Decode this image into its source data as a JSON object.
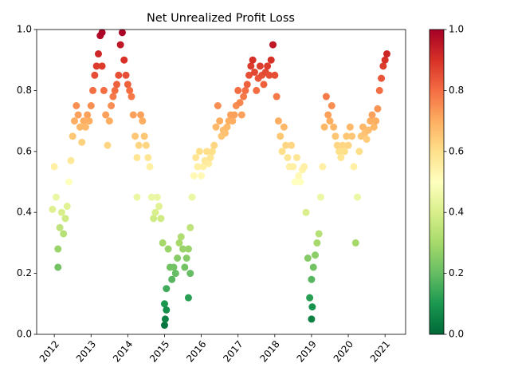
{
  "chart_data": {
    "type": "scatter",
    "title": "Net Unrealized Profit Loss",
    "colormap": "RdYlGn",
    "x": [
      2011.95,
      2012.0,
      2012.05,
      2012.1,
      2012.15,
      2012.2,
      2012.25,
      2012.3,
      2012.35,
      2012.4,
      2012.45,
      2012.5,
      2012.55,
      2012.6,
      2012.65,
      2012.7,
      2012.75,
      2012.8,
      2012.85,
      2012.9,
      2012.95,
      2013.0,
      2013.05,
      2013.1,
      2013.15,
      2013.2,
      2013.25,
      2013.3,
      2013.35,
      2013.4,
      2013.45,
      2013.5,
      2013.55,
      2013.6,
      2013.65,
      2013.7,
      2013.75,
      2013.8,
      2013.85,
      2013.9,
      2013.95,
      2014.0,
      2014.05,
      2014.1,
      2014.15,
      2014.2,
      2014.25,
      2014.3,
      2014.35,
      2014.4,
      2014.45,
      2014.5,
      2014.55,
      2014.6,
      2014.65,
      2014.7,
      2014.75,
      2014.8,
      2014.85,
      2014.9,
      2014.95,
      2015.0,
      2015.05,
      2015.1,
      2015.15,
      2015.2,
      2015.25,
      2015.3,
      2015.35,
      2015.4,
      2015.45,
      2015.5,
      2015.55,
      2015.6,
      2015.65,
      2015.7,
      2015.75,
      2015.8,
      2015.85,
      2015.9,
      2015.95,
      2016.0,
      2016.05,
      2016.1,
      2016.15,
      2016.2,
      2016.25,
      2016.3,
      2016.35,
      2016.4,
      2016.45,
      2016.5,
      2016.55,
      2016.6,
      2016.65,
      2016.7,
      2016.75,
      2016.8,
      2016.85,
      2016.9,
      2016.95,
      2017.0,
      2017.05,
      2017.1,
      2017.15,
      2017.2,
      2017.25,
      2017.3,
      2017.35,
      2017.4,
      2017.45,
      2017.5,
      2017.55,
      2017.6,
      2017.65,
      2017.7,
      2017.75,
      2017.8,
      2017.85,
      2017.9,
      2017.95,
      2018.0,
      2018.05,
      2018.1,
      2018.15,
      2018.2,
      2018.25,
      2018.3,
      2018.35,
      2018.4,
      2018.45,
      2018.5,
      2018.55,
      2018.6,
      2018.65,
      2018.7,
      2018.75,
      2018.8,
      2018.85,
      2018.9,
      2018.95,
      2019.0,
      2019.05,
      2019.1,
      2019.15,
      2019.2,
      2019.25,
      2019.3,
      2019.35,
      2019.4,
      2019.45,
      2019.5,
      2019.55,
      2019.6,
      2019.65,
      2019.7,
      2019.75,
      2019.8,
      2019.85,
      2019.9,
      2019.95,
      2020.0,
      2020.05,
      2020.1,
      2020.15,
      2020.2,
      2020.25,
      2020.3,
      2020.35,
      2020.4,
      2020.45,
      2020.5,
      2020.55,
      2020.6,
      2020.65,
      2020.7,
      2020.75,
      2020.8,
      2020.85,
      2020.9,
      2020.95,
      2021.0,
      2021.05,
      2015.0,
      2015.02,
      2015.05,
      2019.0,
      2019.02,
      2013.3,
      2015.65,
      2012.1,
      2014.25,
      2015.7
    ],
    "values": [
      0.41,
      0.55,
      0.45,
      0.28,
      0.35,
      0.4,
      0.33,
      0.38,
      0.42,
      0.5,
      0.57,
      0.65,
      0.7,
      0.75,
      0.72,
      0.68,
      0.63,
      0.7,
      0.68,
      0.72,
      0.7,
      0.75,
      0.8,
      0.85,
      0.88,
      0.92,
      0.98,
      0.88,
      0.8,
      0.72,
      0.62,
      0.7,
      0.75,
      0.78,
      0.8,
      0.82,
      0.85,
      0.95,
      0.99,
      0.9,
      0.85,
      0.82,
      0.8,
      0.78,
      0.72,
      0.65,
      0.58,
      0.62,
      0.72,
      0.7,
      0.65,
      0.62,
      0.58,
      0.55,
      0.45,
      0.38,
      0.4,
      0.45,
      0.42,
      0.38,
      0.3,
      0.1,
      0.15,
      0.28,
      0.22,
      0.18,
      0.22,
      0.2,
      0.25,
      0.3,
      0.32,
      0.28,
      0.22,
      0.25,
      0.28,
      0.35,
      0.45,
      0.52,
      0.58,
      0.55,
      0.6,
      0.52,
      0.55,
      0.57,
      0.6,
      0.56,
      0.58,
      0.6,
      0.62,
      0.68,
      0.75,
      0.7,
      0.65,
      0.67,
      0.66,
      0.68,
      0.7,
      0.72,
      0.7,
      0.72,
      0.75,
      0.8,
      0.76,
      0.72,
      0.78,
      0.8,
      0.82,
      0.85,
      0.88,
      0.9,
      0.86,
      0.8,
      0.84,
      0.88,
      0.85,
      0.82,
      0.86,
      0.88,
      0.85,
      0.9,
      0.95,
      0.85,
      0.78,
      0.7,
      0.65,
      0.6,
      0.68,
      0.62,
      0.58,
      0.55,
      0.62,
      0.55,
      0.5,
      0.58,
      0.52,
      0.5,
      0.54,
      0.55,
      0.4,
      0.25,
      0.12,
      0.18,
      0.22,
      0.26,
      0.3,
      0.33,
      0.45,
      0.55,
      0.68,
      0.78,
      0.72,
      0.7,
      0.75,
      0.68,
      0.65,
      0.62,
      0.6,
      0.58,
      0.62,
      0.6,
      0.65,
      0.62,
      0.68,
      0.65,
      0.55,
      0.3,
      0.45,
      0.6,
      0.65,
      0.68,
      0.66,
      0.64,
      0.67,
      0.7,
      0.72,
      0.68,
      0.7,
      0.74,
      0.8,
      0.84,
      0.88,
      0.9,
      0.92,
      0.03,
      0.05,
      0.08,
      0.05,
      0.09,
      0.99,
      0.12,
      0.22,
      0.45,
      0.2
    ],
    "xlim": [
      2011.52,
      2021.56
    ],
    "xticks": [
      2012,
      2013,
      2014,
      2015,
      2016,
      2017,
      2018,
      2019,
      2020,
      2021
    ],
    "ylim": [
      0,
      1
    ],
    "yticks": [
      {
        "value": 0,
        "label": "0.0"
      },
      {
        "value": 0.2,
        "label": "0.2"
      },
      {
        "value": 0.4,
        "label": "0.4"
      },
      {
        "value": 0.6,
        "label": "0.6"
      },
      {
        "value": 0.8,
        "label": "0.8"
      },
      {
        "value": 1,
        "label": "1.0"
      }
    ],
    "clim": [
      0,
      1
    ],
    "cticks": [
      {
        "value": 0,
        "label": "0.0"
      },
      {
        "value": 0.2,
        "label": "0.2"
      },
      {
        "value": 0.4,
        "label": "0.4"
      },
      {
        "value": 0.6,
        "label": "0.6"
      },
      {
        "value": 0.8,
        "label": "0.8"
      },
      {
        "value": 1,
        "label": "1.0"
      }
    ]
  }
}
